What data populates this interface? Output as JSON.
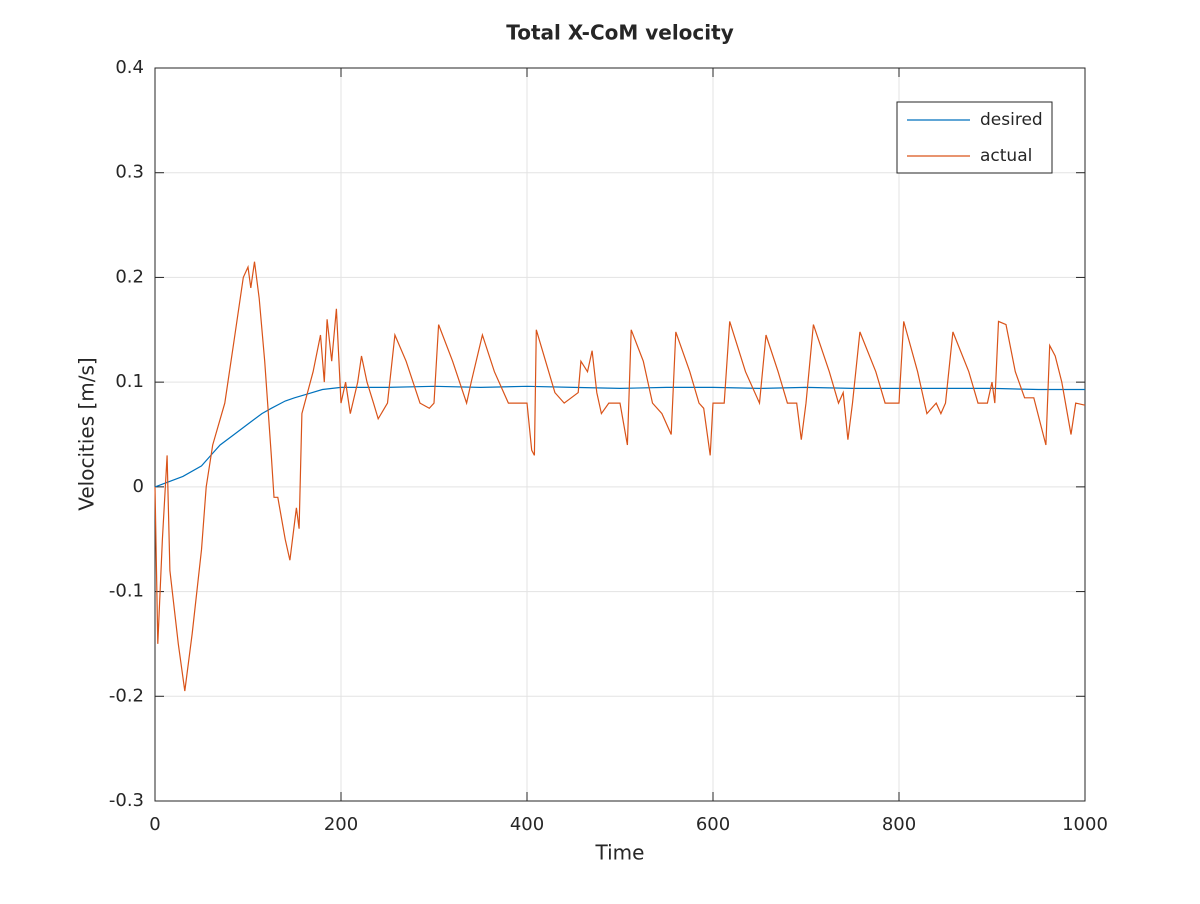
{
  "chart_data": {
    "type": "line",
    "title": "Total X-CoM velocity",
    "xlabel": "Time",
    "ylabel": "Velocities [m/s]",
    "xlim": [
      0,
      1000
    ],
    "xticks": [
      0,
      200,
      400,
      600,
      800,
      1000
    ],
    "ylim": [
      -0.3,
      0.4
    ],
    "yticks": [
      -0.3,
      -0.2,
      -0.1,
      0,
      0.1,
      0.2,
      0.3,
      0.4
    ],
    "grid": true,
    "legend": "upper right",
    "series": [
      {
        "name": "desired",
        "color": "#0072bd",
        "x": [
          0,
          30,
          50,
          60,
          70,
          85,
          100,
          115,
          125,
          140,
          150,
          165,
          180,
          200,
          250,
          300,
          350,
          400,
          450,
          500,
          550,
          600,
          650,
          700,
          750,
          800,
          850,
          900,
          950,
          1000
        ],
        "values": [
          0,
          0.01,
          0.02,
          0.03,
          0.04,
          0.05,
          0.06,
          0.07,
          0.075,
          0.082,
          0.085,
          0.089,
          0.093,
          0.095,
          0.095,
          0.096,
          0.095,
          0.096,
          0.095,
          0.094,
          0.095,
          0.095,
          0.094,
          0.095,
          0.094,
          0.094,
          0.094,
          0.094,
          0.093,
          0.093
        ]
      },
      {
        "name": "actual",
        "color": "#d95319",
        "x": [
          0,
          3,
          8,
          13,
          16,
          25,
          32,
          40,
          50,
          55,
          62,
          75,
          85,
          95,
          100,
          103,
          107,
          112,
          118,
          125,
          128,
          132,
          140,
          145,
          152,
          155,
          158,
          170,
          178,
          182,
          185,
          190,
          195,
          200,
          205,
          210,
          218,
          222,
          228,
          235,
          240,
          250,
          258,
          270,
          285,
          295,
          300,
          305,
          320,
          335,
          340,
          352,
          365,
          380,
          400,
          405,
          408,
          410,
          420,
          430,
          440,
          455,
          458,
          465,
          470,
          475,
          480,
          488,
          500,
          508,
          512,
          525,
          535,
          545,
          555,
          560,
          575,
          585,
          590,
          597,
          600,
          612,
          618,
          635,
          650,
          657,
          670,
          680,
          690,
          695,
          700,
          708,
          725,
          735,
          740,
          745,
          750,
          758,
          775,
          785,
          800,
          805,
          820,
          830,
          840,
          845,
          850,
          858,
          875,
          885,
          895,
          900,
          903,
          907,
          915,
          925,
          935,
          945,
          958,
          962,
          968,
          975,
          985,
          990,
          1000
        ],
        "values": [
          0,
          -0.15,
          -0.05,
          0.03,
          -0.08,
          -0.15,
          -0.195,
          -0.14,
          -0.06,
          0.0,
          0.04,
          0.08,
          0.14,
          0.2,
          0.21,
          0.19,
          0.215,
          0.18,
          0.12,
          0.03,
          -0.01,
          -0.01,
          -0.05,
          -0.07,
          -0.02,
          -0.04,
          0.07,
          0.11,
          0.145,
          0.1,
          0.16,
          0.12,
          0.17,
          0.08,
          0.1,
          0.07,
          0.1,
          0.125,
          0.1,
          0.08,
          0.065,
          0.08,
          0.145,
          0.12,
          0.08,
          0.075,
          0.08,
          0.155,
          0.12,
          0.08,
          0.1,
          0.145,
          0.11,
          0.08,
          0.08,
          0.035,
          0.03,
          0.15,
          0.12,
          0.09,
          0.08,
          0.09,
          0.12,
          0.11,
          0.13,
          0.09,
          0.07,
          0.08,
          0.08,
          0.04,
          0.15,
          0.12,
          0.08,
          0.07,
          0.05,
          0.148,
          0.11,
          0.08,
          0.075,
          0.03,
          0.08,
          0.08,
          0.158,
          0.11,
          0.08,
          0.145,
          0.11,
          0.08,
          0.08,
          0.045,
          0.08,
          0.155,
          0.11,
          0.08,
          0.09,
          0.045,
          0.08,
          0.148,
          0.11,
          0.08,
          0.08,
          0.158,
          0.11,
          0.07,
          0.08,
          0.07,
          0.08,
          0.148,
          0.11,
          0.08,
          0.08,
          0.1,
          0.08,
          0.158,
          0.155,
          0.11,
          0.085,
          0.085,
          0.04,
          0.135,
          0.125,
          0.1,
          0.05,
          0.08,
          0.078
        ]
      }
    ]
  }
}
